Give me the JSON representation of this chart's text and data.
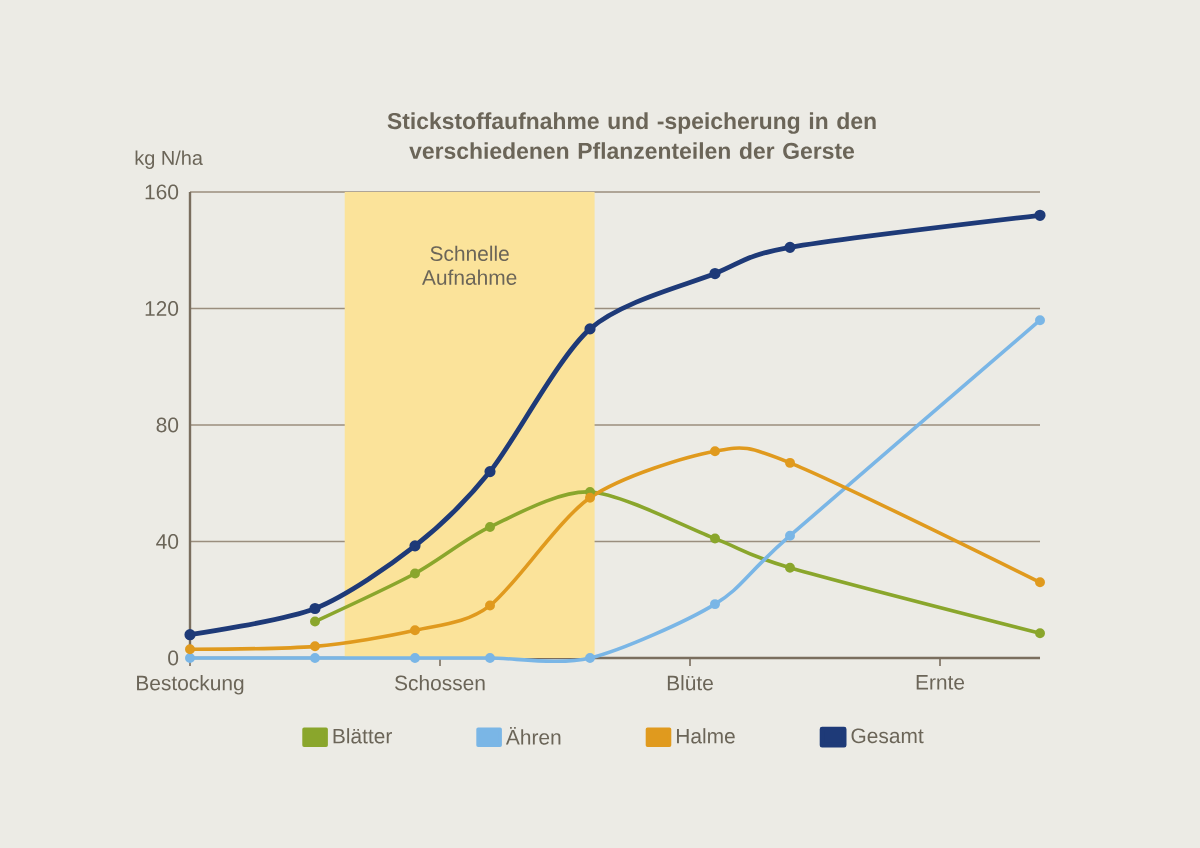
{
  "chart_data": {
    "type": "line",
    "title": "Stickstoffaufnahme und -speicherung in den verschiedenen Pflanzenteilen der Gerste",
    "ylabel": "kg N/ha",
    "categories": [
      "Bestockung",
      null,
      null,
      null,
      null,
      null,
      null,
      null,
      null,
      null,
      "Schossen",
      null,
      null,
      null,
      null,
      null,
      null,
      null,
      null,
      null,
      "Blüte",
      null,
      null,
      null,
      null,
      null,
      null,
      null,
      null,
      null,
      "Ernte",
      null,
      null,
      null,
      null
    ],
    "ylim": [
      0,
      160
    ],
    "yticks": [
      0,
      40,
      80,
      120,
      160
    ],
    "grid": "y",
    "legend": "bottom",
    "marker": "circle",
    "annotations": [
      "Schnelle Aufnahme"
    ],
    "series": [
      {
        "name": "Blätter",
        "color": "#8aa62c",
        "values": [
          null,
          null,
          null,
          null,
          null,
          12.5,
          null,
          null,
          null,
          29,
          null,
          null,
          45,
          null,
          null,
          null,
          57,
          null,
          null,
          null,
          null,
          41,
          null,
          null,
          31,
          null,
          null,
          null,
          null,
          null,
          null,
          null,
          null,
          null,
          8.5
        ]
      },
      {
        "name": "Ähren",
        "color": "#7ab6e6",
        "values": [
          0,
          null,
          null,
          null,
          null,
          0,
          null,
          null,
          null,
          0,
          null,
          null,
          0,
          null,
          null,
          null,
          0,
          null,
          null,
          null,
          null,
          18.5,
          null,
          null,
          42,
          null,
          null,
          null,
          null,
          null,
          null,
          null,
          null,
          null,
          116
        ]
      },
      {
        "name": "Halme",
        "color": "#e09a1e",
        "values": [
          3,
          null,
          null,
          null,
          null,
          4,
          null,
          null,
          null,
          9.5,
          null,
          null,
          18,
          null,
          null,
          null,
          55,
          null,
          null,
          null,
          null,
          71,
          null,
          null,
          67,
          null,
          null,
          null,
          null,
          null,
          null,
          null,
          null,
          null,
          26
        ]
      },
      {
        "name": "Gesamt",
        "color": "#1e3a78",
        "values": [
          8,
          null,
          null,
          null,
          null,
          17,
          null,
          null,
          null,
          38.5,
          null,
          null,
          64,
          null,
          null,
          null,
          113,
          null,
          null,
          null,
          null,
          132,
          null,
          null,
          141,
          null,
          null,
          null,
          null,
          null,
          null,
          null,
          null,
          null,
          152
        ]
      }
    ]
  }
}
